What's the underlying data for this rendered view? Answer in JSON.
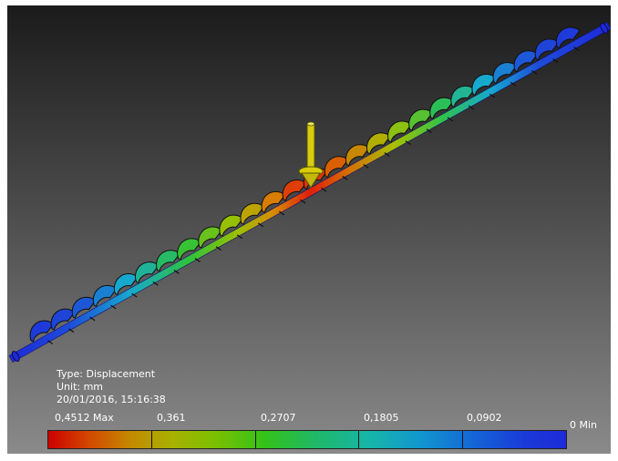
{
  "legend": {
    "type_line": "Type: Displacement",
    "unit_line": "Unit: mm",
    "date_line": "20/01/2016, 15:16:38"
  },
  "scale": {
    "max_label": "0,4512 Max",
    "ticks": [
      "0,361",
      "0,2707",
      "0,1805",
      "0,0902"
    ],
    "min_label": "0 Min",
    "max_value": 0.4512,
    "min_value": 0,
    "colors_high_to_low": [
      "#cc0000",
      "#b8a000",
      "#33c21a",
      "#16b6a8",
      "#1466d6",
      "#1e2ad9"
    ]
  },
  "model": {
    "part": "screw conveyor shaft",
    "load_marker": "force-arrow",
    "load_color": "#d8cc10"
  }
}
